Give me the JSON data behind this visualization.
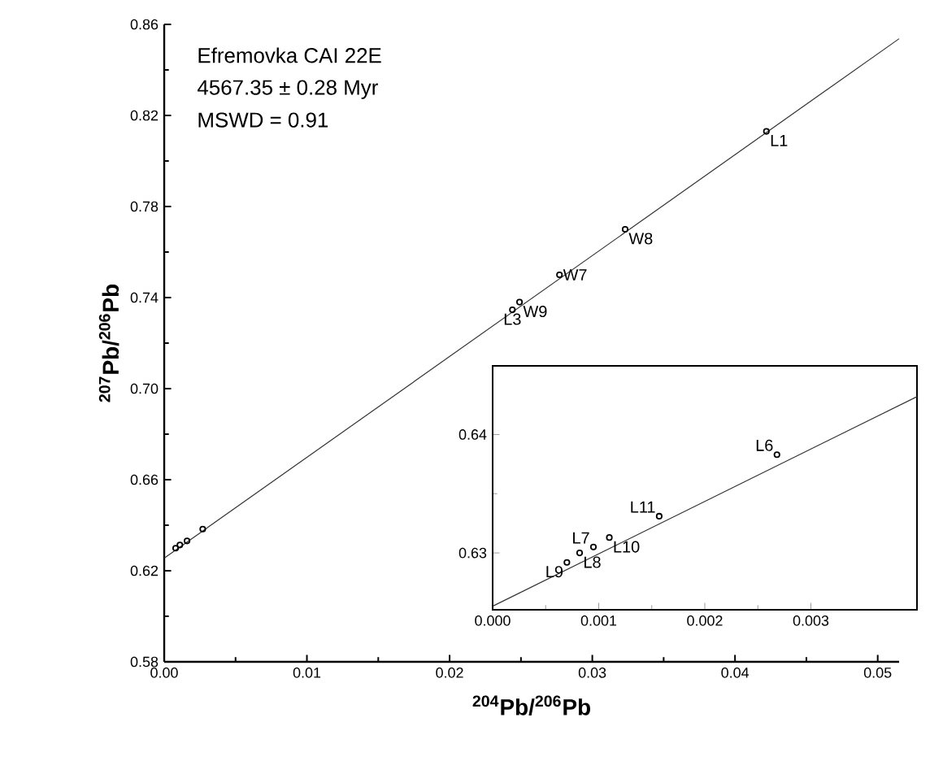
{
  "chart_data": [
    {
      "type": "scatter",
      "xlabel": "$^{204}$Pb/$^{206}$Pb",
      "ylabel": "$^{207}$Pb/$^{206}$Pb",
      "xlim": [
        0,
        0.0515
      ],
      "ylim": [
        0.58,
        0.86
      ],
      "xticks": [
        {
          "value": 0,
          "label": "0.00"
        },
        0.01,
        0.02,
        0.03,
        0.04,
        0.05
      ],
      "yticks": [
        0.58,
        0.62,
        0.66,
        {
          "value": 0.7,
          "label": "0.70"
        },
        0.74,
        0.78,
        0.82,
        0.86
      ],
      "marker": "circle",
      "series": [
        {
          "type": "line",
          "marker": "none",
          "color": "#333333",
          "x": [
            0,
            0.0515
          ],
          "values": [
            0.6255,
            0.8537
          ]
        },
        {
          "color": "#000000",
          "x": [
            0.0422,
            0.0323,
            0.0277,
            0.0249,
            0.0244,
            0.0027,
            0.0016,
            0.0011,
            0.0008
          ],
          "values": [
            0.813,
            0.77,
            0.75,
            0.738,
            0.7346,
            0.6383,
            0.6331,
            0.6313,
            0.6299
          ]
        }
      ],
      "annotations": [
        "Efremovka CAI 22E",
        "4567.35 ± 0.28 Myr",
        "MSWD = 0.91",
        {
          "text": "L1",
          "x": 0.0422,
          "y": 0.813
        },
        {
          "text": "W8",
          "x": 0.0323,
          "y": 0.77
        },
        {
          "text": "W7",
          "x": 0.0277,
          "y": 0.75
        },
        {
          "text": "W9",
          "x": 0.0249,
          "y": 0.738
        },
        {
          "text": "L3",
          "x": 0.0244,
          "y": 0.7346
        }
      ]
    },
    {
      "type": "scatter",
      "xlim": [
        0,
        0.004
      ],
      "ylim": [
        0.6252,
        0.6458
      ],
      "xticks": [
        {
          "value": 0,
          "label": "0.000"
        },
        0.001,
        0.002,
        0.003
      ],
      "yticks": [
        0.63,
        0.64
      ],
      "marker": "circle",
      "series": [
        {
          "type": "line",
          "marker": "none",
          "color": "#333333",
          "x": [
            0,
            0.004
          ],
          "values": [
            0.6255,
            0.6432
          ]
        },
        {
          "color": "#000000",
          "x": [
            0.00268,
            0.00157,
            0.00095,
            0.0011,
            0.00082,
            0.0007
          ],
          "values": [
            0.6383,
            0.6331,
            0.6305,
            0.6313,
            0.63,
            0.6292
          ]
        }
      ],
      "annotations": [
        {
          "text": "L6",
          "x": 0.00268,
          "y": 0.6383
        },
        {
          "text": "L11",
          "x": 0.00157,
          "y": 0.6331
        },
        {
          "text": "L7",
          "x": 0.00095,
          "y": 0.6305
        },
        {
          "text": "L10",
          "x": 0.0011,
          "y": 0.6313
        },
        {
          "text": "L8",
          "x": 0.00082,
          "y": 0.63
        },
        {
          "text": "L9",
          "x": 0.0007,
          "y": 0.6292
        }
      ]
    }
  ]
}
